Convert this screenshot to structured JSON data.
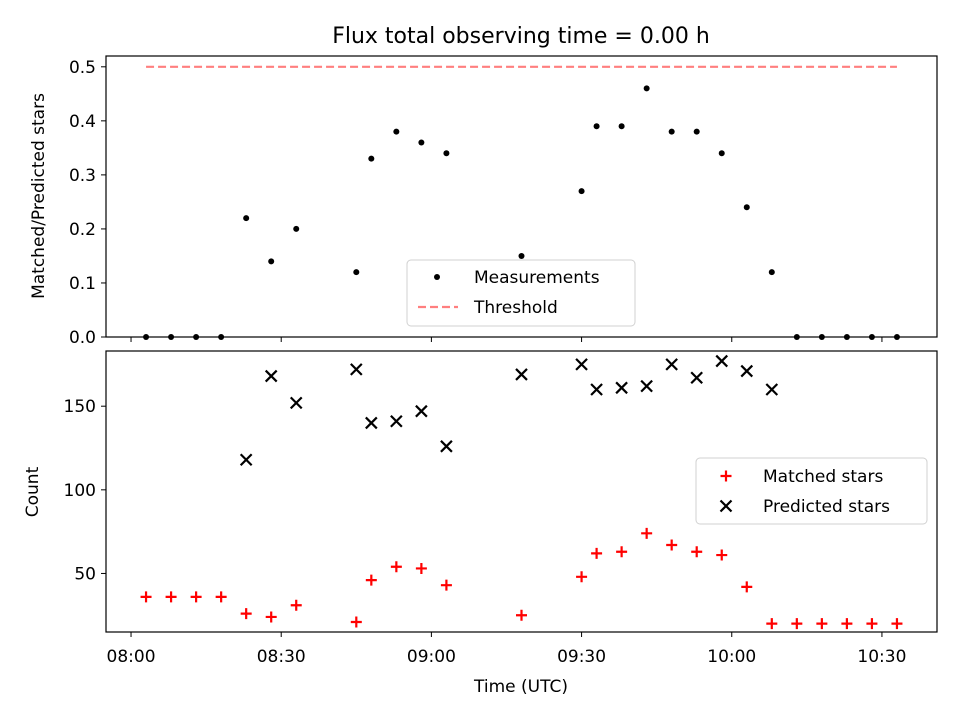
{
  "chart_data": [
    {
      "type": "scatter",
      "title": "Flux total observing time = 0.00 h",
      "xlabel": "",
      "ylabel": "Matched/Predicted stars",
      "ylim": [
        0,
        0.52
      ],
      "yticks": [
        0.0,
        0.1,
        0.2,
        0.3,
        0.4,
        0.5
      ],
      "ytick_labels": [
        "0.0",
        "0.1",
        "0.2",
        "0.3",
        "0.4",
        "0.5"
      ],
      "grid": false,
      "legend": {
        "position": "bottom-center",
        "entries": [
          "Measurements",
          "Threshold"
        ]
      },
      "series": [
        {
          "name": "Measurements",
          "marker": "dot",
          "color": "#000000",
          "x": [
            "08:03",
            "08:08",
            "08:13",
            "08:18",
            "08:23",
            "08:28",
            "08:33",
            "08:45",
            "08:48",
            "08:53",
            "08:58",
            "09:03",
            "09:18",
            "09:30",
            "09:33",
            "09:38",
            "09:43",
            "09:48",
            "09:53",
            "09:58",
            "10:03",
            "10:08",
            "10:13",
            "10:18",
            "10:23",
            "10:28",
            "10:33"
          ],
          "y": [
            0,
            0,
            0,
            0,
            0.22,
            0.14,
            0.2,
            0.12,
            0.33,
            0.38,
            0.36,
            0.34,
            0.15,
            0.27,
            0.39,
            0.39,
            0.46,
            0.38,
            0.38,
            0.34,
            0.24,
            0.12,
            0,
            0,
            0,
            0,
            0
          ]
        },
        {
          "name": "Threshold",
          "style": "dashed",
          "color": "#ff7f7f",
          "x": [
            "08:03",
            "10:33"
          ],
          "y": [
            0.5,
            0.5
          ]
        }
      ]
    },
    {
      "type": "scatter",
      "title": "",
      "xlabel": "Time (UTC)",
      "ylabel": "Count",
      "ylim": [
        15,
        183
      ],
      "yticks": [
        50,
        100,
        150
      ],
      "ytick_labels": [
        "50",
        "100",
        "150"
      ],
      "xticks": [
        "08:00",
        "08:30",
        "09:00",
        "09:30",
        "10:00",
        "10:30"
      ],
      "xlim": [
        "07:55",
        "10:41"
      ],
      "grid": false,
      "legend": {
        "position": "center-right",
        "entries": [
          "Matched stars",
          "Predicted stars"
        ]
      },
      "series": [
        {
          "name": "Matched stars",
          "marker": "plus",
          "color": "#ff0000",
          "x": [
            "08:03",
            "08:08",
            "08:13",
            "08:18",
            "08:23",
            "08:28",
            "08:33",
            "08:45",
            "08:48",
            "08:53",
            "08:58",
            "09:03",
            "09:18",
            "09:30",
            "09:33",
            "09:38",
            "09:43",
            "09:48",
            "09:53",
            "09:58",
            "10:03",
            "10:08",
            "10:13",
            "10:18",
            "10:23",
            "10:28",
            "10:33"
          ],
          "y": [
            36,
            36,
            36,
            36,
            26,
            24,
            31,
            21,
            46,
            54,
            53,
            43,
            25,
            48,
            62,
            63,
            74,
            67,
            63,
            61,
            42,
            20,
            20,
            20,
            20,
            20,
            20
          ]
        },
        {
          "name": "Predicted stars",
          "marker": "x",
          "color": "#000000",
          "x": [
            "08:23",
            "08:28",
            "08:33",
            "08:45",
            "08:48",
            "08:53",
            "08:58",
            "09:03",
            "09:18",
            "09:30",
            "09:33",
            "09:38",
            "09:43",
            "09:48",
            "09:53",
            "09:58",
            "10:03",
            "10:08"
          ],
          "y": [
            118,
            168,
            152,
            172,
            140,
            141,
            147,
            126,
            169,
            175,
            160,
            161,
            162,
            175,
            167,
            177,
            171,
            160
          ]
        }
      ]
    }
  ]
}
